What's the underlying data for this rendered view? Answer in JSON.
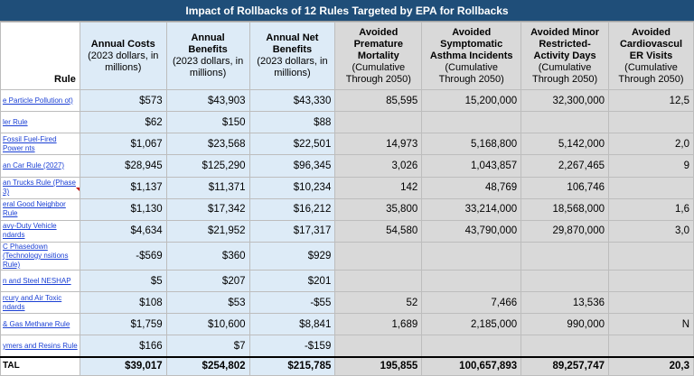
{
  "title": "Impact of Rollbacks of 12 Rules Targeted by EPA for Rollbacks",
  "headers": {
    "rule": "Rule",
    "costs": {
      "label": "Annual Costs",
      "sub": "(2023 dollars, in millions)"
    },
    "benefits": {
      "label": "Annual Benefits",
      "sub": "(2023 dollars, in millions)"
    },
    "net": {
      "label": "Annual Net Benefits",
      "sub": "(2023 dollars, in millions)"
    },
    "mortality": {
      "label": "Avoided Premature Mortality",
      "sub": "(Cumulative Through 2050)"
    },
    "asthma": {
      "label": "Avoided Symptomatic Asthma Incidents",
      "sub": "(Cumulative Through 2050)"
    },
    "minor": {
      "label": "Avoided Minor Restricted-Activity Days",
      "sub": "(Cumulative Through 2050)"
    },
    "cardio": {
      "label": "Avoided Cardiovascul ER Visits",
      "sub": "(Cumulative Through 2050)"
    }
  },
  "rows": [
    {
      "rule": "e Particle Pollution ot)",
      "costs": "$573",
      "benefits": "$43,903",
      "net": "$43,330",
      "mortality": "85,595",
      "asthma": "15,200,000",
      "minor": "32,300,000",
      "cardio": "12,5"
    },
    {
      "rule": "ler Rule",
      "costs": "$62",
      "benefits": "$150",
      "net": "$88",
      "mortality": "",
      "asthma": "",
      "minor": "",
      "cardio": ""
    },
    {
      "rule": "Fossil Fuel-Fired Power nts",
      "costs": "$1,067",
      "benefits": "$23,568",
      "net": "$22,501",
      "mortality": "14,973",
      "asthma": "5,168,800",
      "minor": "5,142,000",
      "cardio": "2,0"
    },
    {
      "rule": "an Car Rule (2027)",
      "costs": "$28,945",
      "benefits": "$125,290",
      "net": "$96,345",
      "mortality": "3,026",
      "asthma": "1,043,857",
      "minor": "2,267,465",
      "cardio": "9"
    },
    {
      "rule": "an Trucks Rule (Phase 3)",
      "costs": "$1,137",
      "benefits": "$11,371",
      "net": "$10,234",
      "mortality": "142",
      "asthma": "48,769",
      "minor": "106,746",
      "cardio": ""
    },
    {
      "rule": "eral Good Neighbor Rule",
      "costs": "$1,130",
      "benefits": "$17,342",
      "net": "$16,212",
      "mortality": "35,800",
      "asthma": "33,214,000",
      "minor": "18,568,000",
      "cardio": "1,6"
    },
    {
      "rule": "avy-Duty Vehicle ndards",
      "costs": "$4,634",
      "benefits": "$21,952",
      "net": "$17,317",
      "mortality": "54,580",
      "asthma": "43,790,000",
      "minor": "29,870,000",
      "cardio": "3,0"
    },
    {
      "rule": "C Phasedown (Technology nsitions Rule)",
      "costs": "-$569",
      "benefits": "$360",
      "net": "$929",
      "mortality": "",
      "asthma": "",
      "minor": "",
      "cardio": ""
    },
    {
      "rule": "n and Steel NESHAP",
      "costs": "$5",
      "benefits": "$207",
      "net": "$201",
      "mortality": "",
      "asthma": "",
      "minor": "",
      "cardio": ""
    },
    {
      "rule": "rcury and Air Toxic ndards",
      "costs": "$108",
      "benefits": "$53",
      "net": "-$55",
      "mortality": "52",
      "asthma": "7,466",
      "minor": "13,536",
      "cardio": ""
    },
    {
      "rule": "& Gas Methane Rule",
      "costs": "$1,759",
      "benefits": "$10,600",
      "net": "$8,841",
      "mortality": "1,689",
      "asthma": "2,185,000",
      "minor": "990,000",
      "cardio": "N"
    },
    {
      "rule": "ymers and Resins Rule",
      "costs": "$166",
      "benefits": "$7",
      "net": "-$159",
      "mortality": "",
      "asthma": "",
      "minor": "",
      "cardio": ""
    }
  ],
  "total": {
    "rule": "TAL",
    "costs": "$39,017",
    "benefits": "$254,802",
    "net": "$215,785",
    "mortality": "195,855",
    "asthma": "100,657,893",
    "minor": "89,257,747",
    "cardio": "20,3"
  },
  "colors": {
    "title_bg": "#1f4e79",
    "money_bg": "#ddebf7",
    "health_bg": "#d9d9d9",
    "link": "#1a3fd4"
  }
}
